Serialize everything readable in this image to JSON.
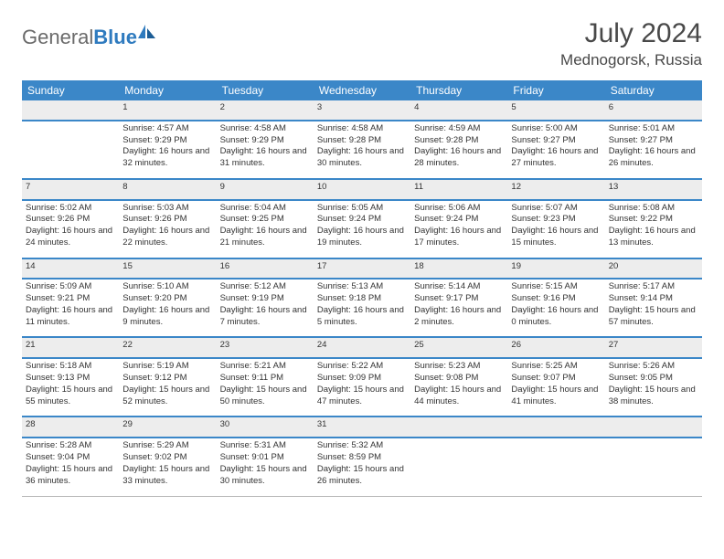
{
  "logo": {
    "gray": "General",
    "blue": "Blue"
  },
  "title": "July 2024",
  "location": "Mednogorsk, Russia",
  "colors": {
    "header_bg": "#3b87c8",
    "header_text": "#ffffff",
    "daynum_bg": "#ededed",
    "daynum_text": "#6a6a6a",
    "border_thick": "#3b87c8",
    "border_thin": "#b8b8b8",
    "body_text": "#333333",
    "title_text": "#494949",
    "logo_gray": "#6a6a6a",
    "logo_blue": "#2f7bbf"
  },
  "weekdays": [
    "Sunday",
    "Monday",
    "Tuesday",
    "Wednesday",
    "Thursday",
    "Friday",
    "Saturday"
  ],
  "weeks": [
    {
      "nums": [
        "",
        "1",
        "2",
        "3",
        "4",
        "5",
        "6"
      ],
      "cells": [
        {
          "sunrise": "",
          "sunset": "",
          "daylight": ""
        },
        {
          "sunrise": "Sunrise: 4:57 AM",
          "sunset": "Sunset: 9:29 PM",
          "daylight": "Daylight: 16 hours and 32 minutes."
        },
        {
          "sunrise": "Sunrise: 4:58 AM",
          "sunset": "Sunset: 9:29 PM",
          "daylight": "Daylight: 16 hours and 31 minutes."
        },
        {
          "sunrise": "Sunrise: 4:58 AM",
          "sunset": "Sunset: 9:28 PM",
          "daylight": "Daylight: 16 hours and 30 minutes."
        },
        {
          "sunrise": "Sunrise: 4:59 AM",
          "sunset": "Sunset: 9:28 PM",
          "daylight": "Daylight: 16 hours and 28 minutes."
        },
        {
          "sunrise": "Sunrise: 5:00 AM",
          "sunset": "Sunset: 9:27 PM",
          "daylight": "Daylight: 16 hours and 27 minutes."
        },
        {
          "sunrise": "Sunrise: 5:01 AM",
          "sunset": "Sunset: 9:27 PM",
          "daylight": "Daylight: 16 hours and 26 minutes."
        }
      ]
    },
    {
      "nums": [
        "7",
        "8",
        "9",
        "10",
        "11",
        "12",
        "13"
      ],
      "cells": [
        {
          "sunrise": "Sunrise: 5:02 AM",
          "sunset": "Sunset: 9:26 PM",
          "daylight": "Daylight: 16 hours and 24 minutes."
        },
        {
          "sunrise": "Sunrise: 5:03 AM",
          "sunset": "Sunset: 9:26 PM",
          "daylight": "Daylight: 16 hours and 22 minutes."
        },
        {
          "sunrise": "Sunrise: 5:04 AM",
          "sunset": "Sunset: 9:25 PM",
          "daylight": "Daylight: 16 hours and 21 minutes."
        },
        {
          "sunrise": "Sunrise: 5:05 AM",
          "sunset": "Sunset: 9:24 PM",
          "daylight": "Daylight: 16 hours and 19 minutes."
        },
        {
          "sunrise": "Sunrise: 5:06 AM",
          "sunset": "Sunset: 9:24 PM",
          "daylight": "Daylight: 16 hours and 17 minutes."
        },
        {
          "sunrise": "Sunrise: 5:07 AM",
          "sunset": "Sunset: 9:23 PM",
          "daylight": "Daylight: 16 hours and 15 minutes."
        },
        {
          "sunrise": "Sunrise: 5:08 AM",
          "sunset": "Sunset: 9:22 PM",
          "daylight": "Daylight: 16 hours and 13 minutes."
        }
      ]
    },
    {
      "nums": [
        "14",
        "15",
        "16",
        "17",
        "18",
        "19",
        "20"
      ],
      "cells": [
        {
          "sunrise": "Sunrise: 5:09 AM",
          "sunset": "Sunset: 9:21 PM",
          "daylight": "Daylight: 16 hours and 11 minutes."
        },
        {
          "sunrise": "Sunrise: 5:10 AM",
          "sunset": "Sunset: 9:20 PM",
          "daylight": "Daylight: 16 hours and 9 minutes."
        },
        {
          "sunrise": "Sunrise: 5:12 AM",
          "sunset": "Sunset: 9:19 PM",
          "daylight": "Daylight: 16 hours and 7 minutes."
        },
        {
          "sunrise": "Sunrise: 5:13 AM",
          "sunset": "Sunset: 9:18 PM",
          "daylight": "Daylight: 16 hours and 5 minutes."
        },
        {
          "sunrise": "Sunrise: 5:14 AM",
          "sunset": "Sunset: 9:17 PM",
          "daylight": "Daylight: 16 hours and 2 minutes."
        },
        {
          "sunrise": "Sunrise: 5:15 AM",
          "sunset": "Sunset: 9:16 PM",
          "daylight": "Daylight: 16 hours and 0 minutes."
        },
        {
          "sunrise": "Sunrise: 5:17 AM",
          "sunset": "Sunset: 9:14 PM",
          "daylight": "Daylight: 15 hours and 57 minutes."
        }
      ]
    },
    {
      "nums": [
        "21",
        "22",
        "23",
        "24",
        "25",
        "26",
        "27"
      ],
      "cells": [
        {
          "sunrise": "Sunrise: 5:18 AM",
          "sunset": "Sunset: 9:13 PM",
          "daylight": "Daylight: 15 hours and 55 minutes."
        },
        {
          "sunrise": "Sunrise: 5:19 AM",
          "sunset": "Sunset: 9:12 PM",
          "daylight": "Daylight: 15 hours and 52 minutes."
        },
        {
          "sunrise": "Sunrise: 5:21 AM",
          "sunset": "Sunset: 9:11 PM",
          "daylight": "Daylight: 15 hours and 50 minutes."
        },
        {
          "sunrise": "Sunrise: 5:22 AM",
          "sunset": "Sunset: 9:09 PM",
          "daylight": "Daylight: 15 hours and 47 minutes."
        },
        {
          "sunrise": "Sunrise: 5:23 AM",
          "sunset": "Sunset: 9:08 PM",
          "daylight": "Daylight: 15 hours and 44 minutes."
        },
        {
          "sunrise": "Sunrise: 5:25 AM",
          "sunset": "Sunset: 9:07 PM",
          "daylight": "Daylight: 15 hours and 41 minutes."
        },
        {
          "sunrise": "Sunrise: 5:26 AM",
          "sunset": "Sunset: 9:05 PM",
          "daylight": "Daylight: 15 hours and 38 minutes."
        }
      ]
    },
    {
      "nums": [
        "28",
        "29",
        "30",
        "31",
        "",
        "",
        ""
      ],
      "cells": [
        {
          "sunrise": "Sunrise: 5:28 AM",
          "sunset": "Sunset: 9:04 PM",
          "daylight": "Daylight: 15 hours and 36 minutes."
        },
        {
          "sunrise": "Sunrise: 5:29 AM",
          "sunset": "Sunset: 9:02 PM",
          "daylight": "Daylight: 15 hours and 33 minutes."
        },
        {
          "sunrise": "Sunrise: 5:31 AM",
          "sunset": "Sunset: 9:01 PM",
          "daylight": "Daylight: 15 hours and 30 minutes."
        },
        {
          "sunrise": "Sunrise: 5:32 AM",
          "sunset": "Sunset: 8:59 PM",
          "daylight": "Daylight: 15 hours and 26 minutes."
        },
        {
          "sunrise": "",
          "sunset": "",
          "daylight": ""
        },
        {
          "sunrise": "",
          "sunset": "",
          "daylight": ""
        },
        {
          "sunrise": "",
          "sunset": "",
          "daylight": ""
        }
      ]
    }
  ]
}
